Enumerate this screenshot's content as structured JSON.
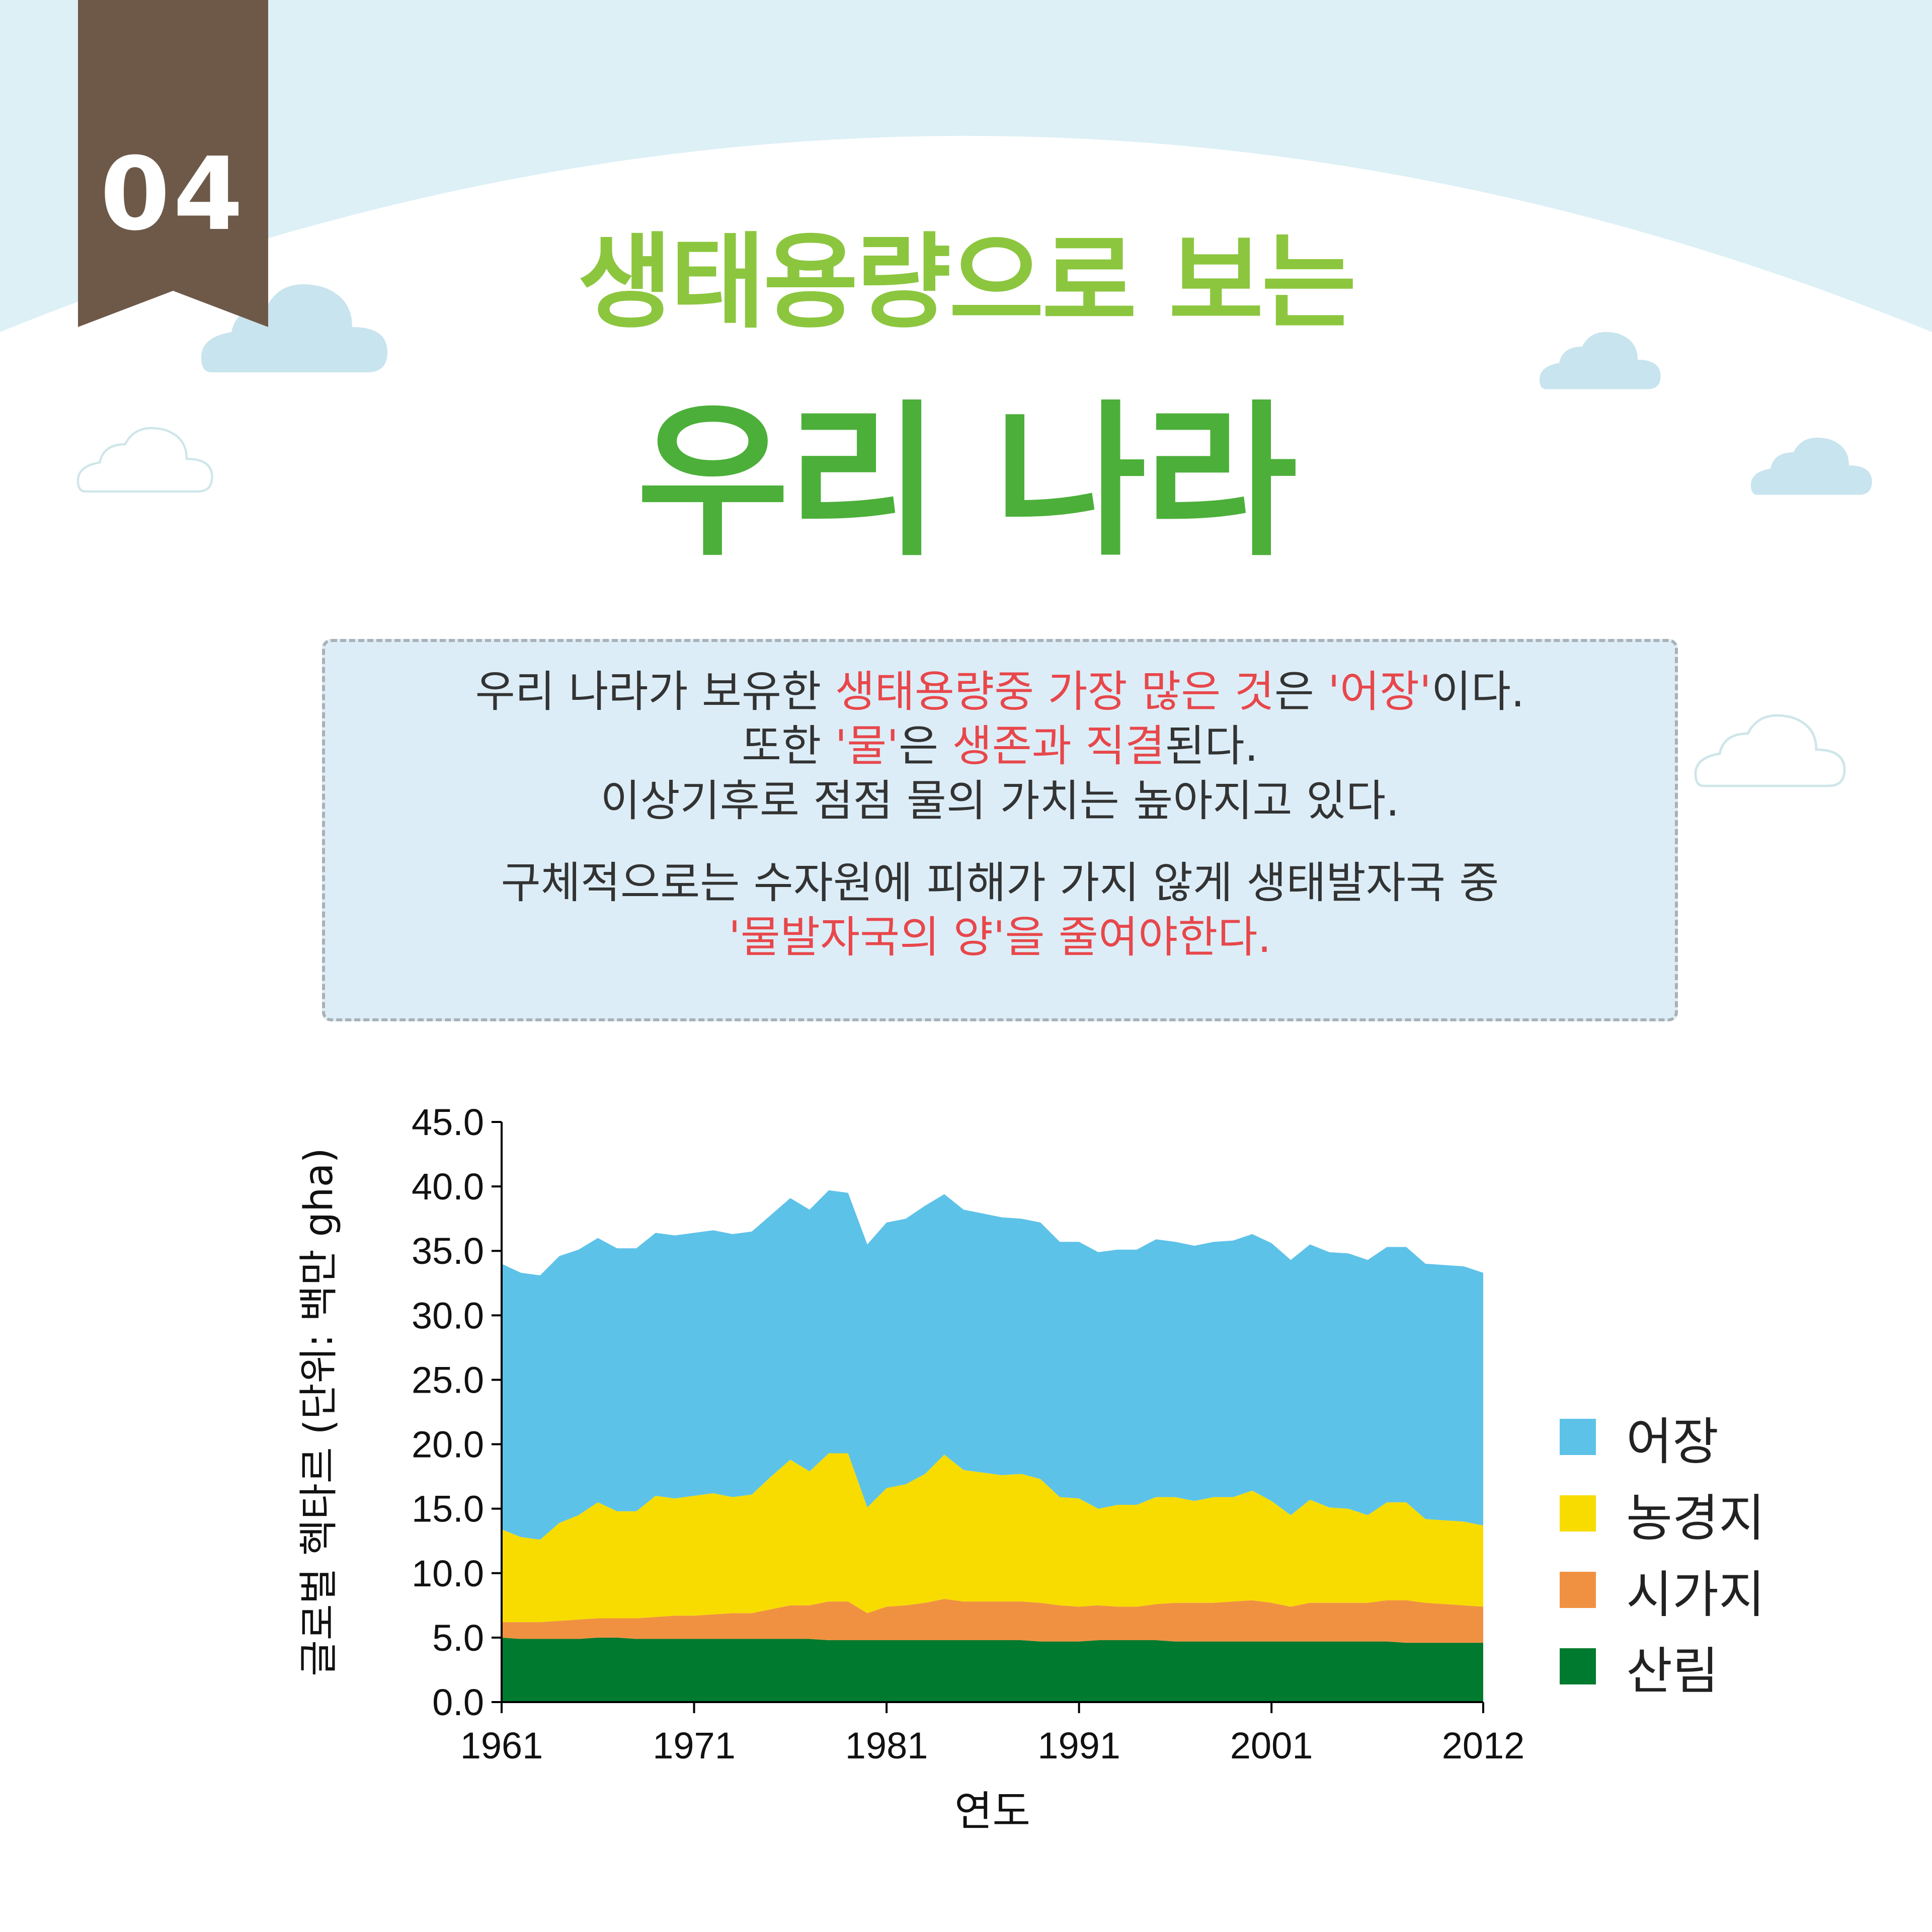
{
  "badge": {
    "number": "04"
  },
  "title": {
    "line1": "생태용량으로 보는",
    "line2": "우리 나라"
  },
  "info": {
    "p1": [
      [
        {
          "t": "우리 나라가 보유한 ",
          "h": false
        },
        {
          "t": "생태용량중 가장 많은 것",
          "h": true
        },
        {
          "t": "은 ",
          "h": false
        },
        {
          "t": "'어장'",
          "h": true
        },
        {
          "t": "이다.",
          "h": false
        }
      ],
      [
        {
          "t": "또한 ",
          "h": false
        },
        {
          "t": "'물'",
          "h": true
        },
        {
          "t": "은 ",
          "h": false
        },
        {
          "t": "생존과 직결",
          "h": true
        },
        {
          "t": "된다.",
          "h": false
        }
      ],
      [
        {
          "t": "이상기후로 점점 물의 가치는 높아지고 있다.",
          "h": false
        }
      ]
    ],
    "p2": [
      [
        {
          "t": "구체적으로는 수자원에 피해가 가지 않게 생태발자국 중",
          "h": false
        }
      ],
      [
        {
          "t": "'물발자국의 양'을 줄여야한다.",
          "h": true
        }
      ]
    ]
  },
  "colors": {
    "sky": "#dcf0f6",
    "badge": "#6e5949",
    "cloud": "#c8e4ee",
    "fishing": "#5dc2e8",
    "cropland": "#f8dc00",
    "builtup": "#f09141",
    "forest": "#007a2f"
  },
  "chart_data": {
    "type": "area",
    "stacked": true,
    "xlabel": "연도",
    "ylabel": "글로벌 헥타르 (단위: 백만 gha)",
    "ylim": [
      0,
      45
    ],
    "yticks": [
      "45.0",
      "40.0",
      "35.0",
      "30.0",
      "25.0",
      "20.0",
      "15.0",
      "10.0",
      "5.0",
      "0.0"
    ],
    "xticks": [
      "1961",
      "1971",
      "1981",
      "1991",
      "2001",
      "2012"
    ],
    "x": [
      1961,
      1962,
      1963,
      1964,
      1965,
      1966,
      1967,
      1968,
      1969,
      1970,
      1971,
      1972,
      1973,
      1974,
      1975,
      1976,
      1977,
      1978,
      1979,
      1980,
      1981,
      1982,
      1983,
      1984,
      1985,
      1986,
      1987,
      1988,
      1989,
      1990,
      1991,
      1992,
      1993,
      1994,
      1995,
      1996,
      1997,
      1998,
      1999,
      2000,
      2001,
      2002,
      2003,
      2004,
      2005,
      2006,
      2007,
      2008,
      2009,
      2010,
      2011,
      2012
    ],
    "series": [
      {
        "name": "산림",
        "color": "#007a2f",
        "values": [
          5.0,
          4.9,
          4.9,
          4.9,
          4.9,
          5.0,
          5.0,
          4.9,
          4.9,
          4.9,
          4.9,
          4.9,
          4.9,
          4.9,
          4.9,
          4.9,
          4.9,
          4.8,
          4.8,
          4.8,
          4.8,
          4.8,
          4.8,
          4.8,
          4.8,
          4.8,
          4.8,
          4.8,
          4.7,
          4.7,
          4.7,
          4.8,
          4.8,
          4.8,
          4.8,
          4.7,
          4.7,
          4.7,
          4.7,
          4.7,
          4.7,
          4.7,
          4.7,
          4.7,
          4.7,
          4.7,
          4.7,
          4.6,
          4.6,
          4.6,
          4.6,
          4.6
        ]
      },
      {
        "name": "시가지",
        "color": "#f09141",
        "values": [
          1.2,
          1.3,
          1.3,
          1.4,
          1.5,
          1.5,
          1.5,
          1.6,
          1.7,
          1.8,
          1.8,
          1.9,
          2.0,
          2.0,
          2.3,
          2.6,
          2.6,
          3.0,
          3.0,
          2.1,
          2.6,
          2.7,
          2.9,
          3.2,
          3.0,
          3.0,
          3.0,
          3.0,
          3.0,
          2.8,
          2.7,
          2.7,
          2.6,
          2.6,
          2.8,
          3.0,
          3.0,
          3.0,
          3.1,
          3.2,
          3.0,
          2.7,
          3.0,
          3.0,
          3.0,
          3.0,
          3.2,
          3.3,
          3.1,
          3.0,
          2.9,
          2.8
        ]
      },
      {
        "name": "농경지",
        "color": "#f8dc00",
        "values": [
          7.2,
          6.6,
          6.4,
          7.6,
          8.1,
          9.0,
          8.3,
          8.3,
          9.4,
          9.1,
          9.3,
          9.4,
          9.0,
          9.2,
          10.3,
          11.3,
          10.4,
          11.5,
          11.5,
          8.2,
          9.2,
          9.4,
          10.0,
          11.2,
          10.2,
          10.0,
          9.8,
          9.9,
          9.6,
          8.4,
          8.4,
          7.5,
          7.9,
          7.9,
          8.3,
          8.2,
          7.9,
          8.2,
          8.1,
          8.5,
          7.9,
          7.1,
          8.0,
          7.4,
          7.3,
          6.8,
          7.6,
          7.6,
          6.5,
          6.5,
          6.5,
          6.3
        ]
      },
      {
        "name": "어장",
        "color": "#5dc2e8",
        "values": [
          20.6,
          20.5,
          20.5,
          20.7,
          20.6,
          20.5,
          20.4,
          20.4,
          20.4,
          20.4,
          20.4,
          20.4,
          20.4,
          20.4,
          20.3,
          20.3,
          20.3,
          20.4,
          20.2,
          20.4,
          20.6,
          20.6,
          20.8,
          20.2,
          20.2,
          20.1,
          20.0,
          19.8,
          19.9,
          19.8,
          19.9,
          19.9,
          19.8,
          19.8,
          20.0,
          19.8,
          19.8,
          19.8,
          19.9,
          19.9,
          20.0,
          19.8,
          19.8,
          19.8,
          19.8,
          19.8,
          19.8,
          19.8,
          19.8,
          19.8,
          19.8,
          19.6
        ]
      }
    ],
    "legend": [
      "어장",
      "농경지",
      "시가지",
      "산림"
    ],
    "legend_position": "right"
  }
}
